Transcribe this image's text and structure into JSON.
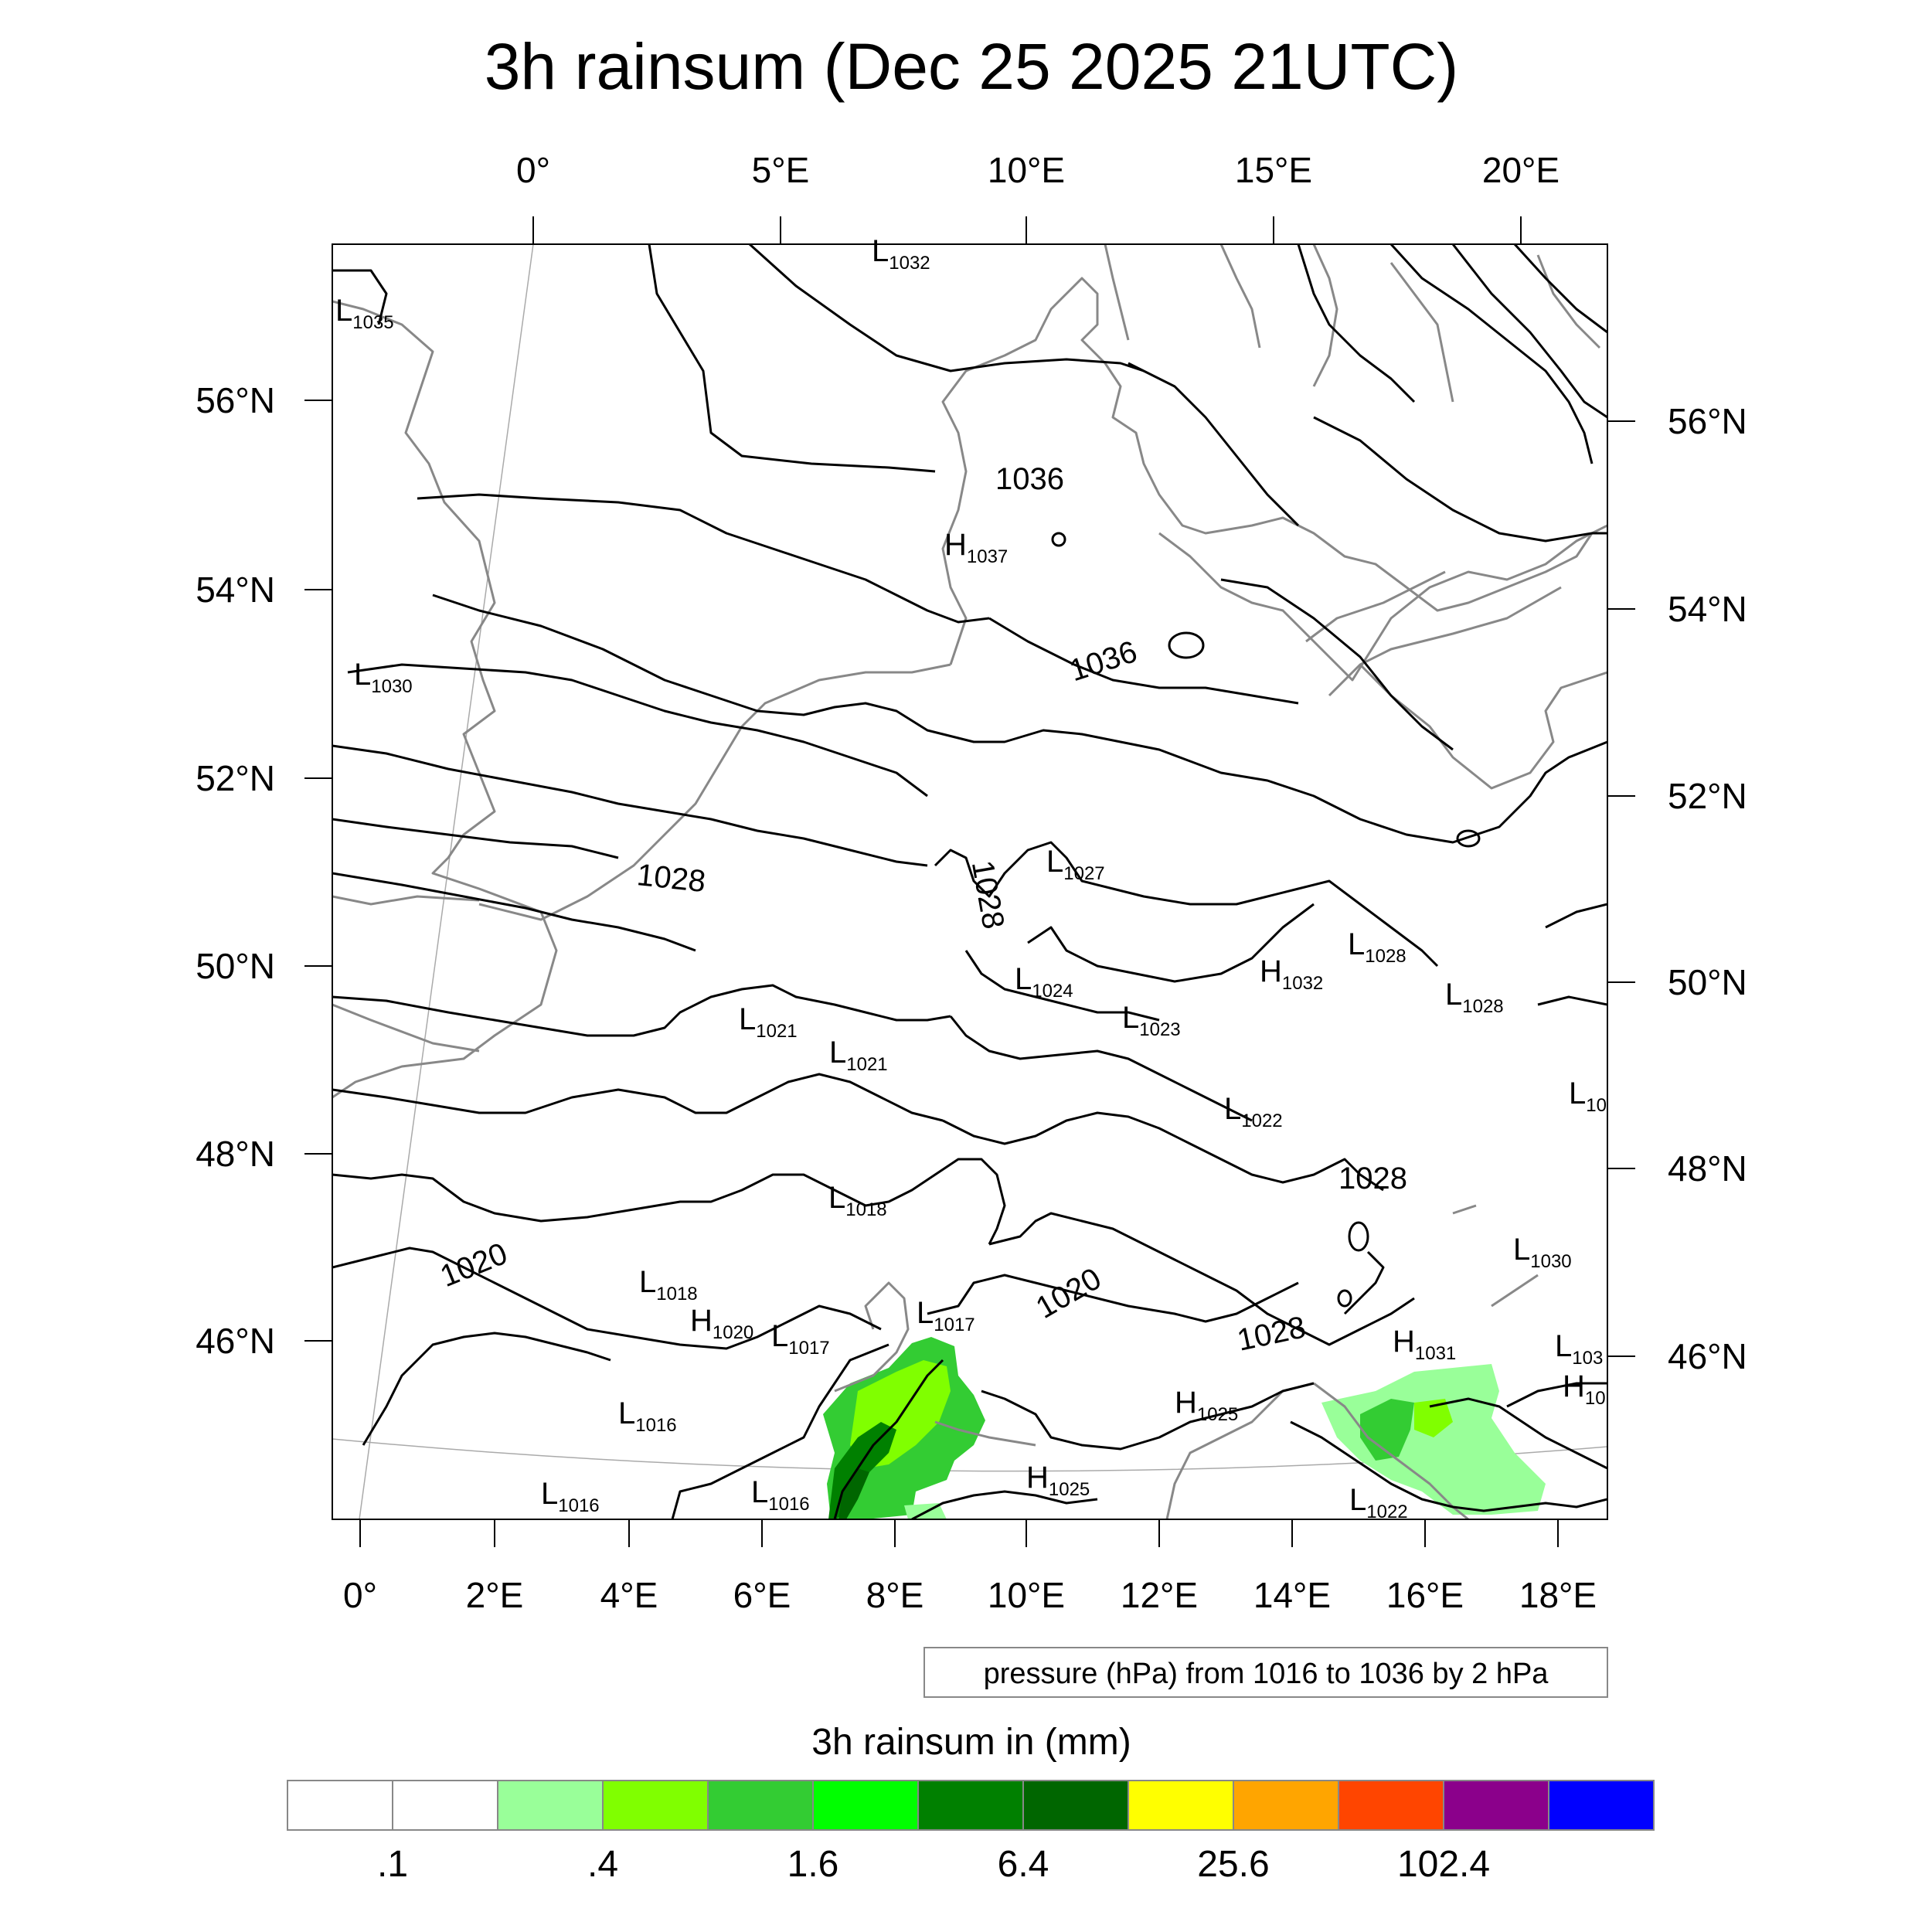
{
  "title": "3h rainsum (Dec 25 2025 21UTC)",
  "top_lon_ticks": [
    "0°",
    "5°E",
    "10°E",
    "15°E",
    "20°E"
  ],
  "bottom_lon_ticks": [
    "0°",
    "2°E",
    "4°E",
    "6°E",
    "8°E",
    "10°E",
    "12°E",
    "14°E",
    "16°E",
    "18°E"
  ],
  "left_lat_ticks": [
    "56°N",
    "54°N",
    "52°N",
    "50°N",
    "48°N",
    "46°N"
  ],
  "right_lat_ticks": [
    "56°N",
    "54°N",
    "52°N",
    "50°N",
    "48°N",
    "46°N"
  ],
  "contour_note": "pressure (hPa) from 1016 to 1036 by 2 hPa",
  "colorbar": {
    "title": "3h rainsum in (mm)",
    "colors": [
      "#ffffff",
      "#ffffff",
      "#99ff99",
      "#80ff00",
      "#33cc33",
      "#00ff00",
      "#008000",
      "#006600",
      "#ffff00",
      "#ffa500",
      "#ff4500",
      "#8b008b",
      "#0000ff"
    ],
    "labels": [
      ".1",
      ".4",
      "1.6",
      "6.4",
      "25.6",
      "102.4"
    ]
  },
  "pressure_labels": [
    {
      "kind": "L",
      "value": "1035"
    },
    {
      "kind": "L",
      "value": "1032"
    },
    {
      "kind": "L",
      "value": "1030"
    },
    {
      "kind": "H",
      "value": "1037"
    },
    {
      "kind": "L",
      "value": "1027"
    },
    {
      "kind": "L",
      "value": "1028"
    },
    {
      "kind": "H",
      "value": "1032"
    },
    {
      "kind": "L",
      "value": "1028"
    },
    {
      "kind": "L",
      "value": "1024"
    },
    {
      "kind": "L",
      "value": "1023"
    },
    {
      "kind": "L",
      "value": "1021"
    },
    {
      "kind": "L",
      "value": "1021"
    },
    {
      "kind": "L",
      "value": "1022"
    },
    {
      "kind": "L",
      "value": "1018"
    },
    {
      "kind": "L",
      "value": "1030"
    },
    {
      "kind": "L",
      "value": "1018"
    },
    {
      "kind": "H",
      "value": "1020"
    },
    {
      "kind": "L",
      "value": "1017"
    },
    {
      "kind": "L",
      "value": "1017"
    },
    {
      "kind": "H",
      "value": "1031"
    },
    {
      "kind": "L",
      "value": "1016"
    },
    {
      "kind": "H",
      "value": "1025"
    },
    {
      "kind": "L",
      "value": "1016"
    },
    {
      "kind": "L",
      "value": "1016"
    },
    {
      "kind": "H",
      "value": "1025"
    },
    {
      "kind": "L",
      "value": "1022"
    },
    {
      "kind": "L",
      "value": "10"
    },
    {
      "kind": "L",
      "value": "103"
    },
    {
      "kind": "H",
      "value": "10"
    }
  ],
  "isobar_labels": [
    "1036",
    "1036",
    "1028",
    "1028",
    "1028",
    "1020",
    "1020",
    "1028"
  ]
}
